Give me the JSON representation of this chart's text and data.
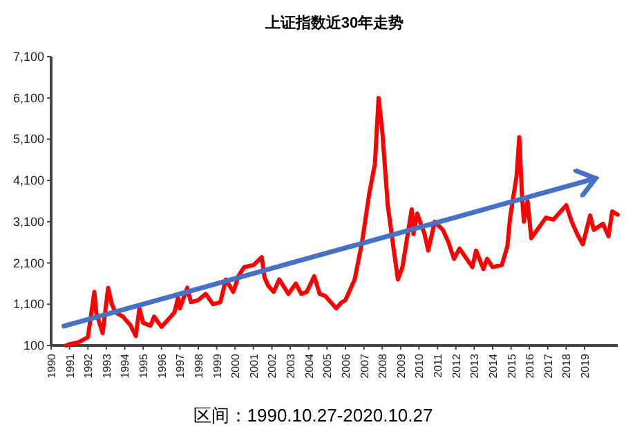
{
  "chart_data": {
    "type": "line",
    "title": "上证指数近30年走势",
    "annotations": [
      "区间：1990.10.27-2020.10.27"
    ],
    "series": [
      {
        "color": "#ff0000",
        "x": [
          1990.8,
          1991.0,
          1991.5,
          1992.0,
          1992.35,
          1992.45,
          1992.8,
          1993.1,
          1993.3,
          1993.5,
          1993.9,
          1994.3,
          1994.6,
          1994.8,
          1995.0,
          1995.4,
          1995.6,
          1996.0,
          1996.3,
          1996.7,
          1996.9,
          1997.0,
          1997.4,
          1997.6,
          1998.0,
          1998.4,
          1998.8,
          1999.2,
          1999.5,
          1999.9,
          2000.2,
          2000.5,
          2001.0,
          2001.45,
          2001.6,
          2001.8,
          2002.1,
          2002.4,
          2002.9,
          2003.3,
          2003.6,
          2003.9,
          2004.3,
          2004.6,
          2004.9,
          2005.3,
          2005.5,
          2005.8,
          2006.0,
          2006.5,
          2006.9,
          2007.3,
          2007.6,
          2007.8,
          2008.0,
          2008.3,
          2008.6,
          2008.85,
          2009.1,
          2009.6,
          2009.7,
          2009.9,
          2010.3,
          2010.5,
          2010.85,
          2011.3,
          2011.6,
          2011.9,
          2012.2,
          2012.9,
          2013.1,
          2013.5,
          2013.7,
          2014.0,
          2014.5,
          2014.8,
          2014.95,
          2015.3,
          2015.45,
          2015.6,
          2015.7,
          2015.9,
          2016.1,
          2016.5,
          2016.9,
          2017.3,
          2017.6,
          2018.0,
          2018.3,
          2018.6,
          2018.9,
          2019.3,
          2019.5,
          2020.0,
          2020.3,
          2020.5,
          2020.8
        ],
        "values": [
          100,
          130,
          180,
          300,
          1400,
          900,
          400,
          1500,
          1100,
          900,
          800,
          600,
          330,
          1000,
          650,
          580,
          800,
          550,
          700,
          900,
          1250,
          1000,
          1500,
          1150,
          1200,
          1350,
          1100,
          1150,
          1700,
          1400,
          1800,
          2000,
          2050,
          2240,
          1750,
          1550,
          1400,
          1700,
          1350,
          1600,
          1350,
          1400,
          1780,
          1350,
          1300,
          1100,
          1000,
          1150,
          1200,
          1700,
          2600,
          3800,
          4500,
          6100,
          5300,
          3500,
          2500,
          1700,
          2000,
          3400,
          2800,
          3300,
          2800,
          2400,
          3100,
          2900,
          2600,
          2200,
          2450,
          2000,
          2400,
          1950,
          2200,
          2000,
          2050,
          2500,
          3200,
          4200,
          5150,
          3700,
          3100,
          3600,
          2700,
          2950,
          3200,
          3150,
          3300,
          3500,
          3100,
          2800,
          2550,
          3250,
          2900,
          3050,
          2750,
          3350,
          3270
        ]
      },
      {
        "type": "line",
        "color": "#4472c4",
        "x": [
          1990.7,
          2019.6
        ],
        "values": [
          570,
          4150
        ]
      }
    ],
    "xlim": [
      1990,
      2020.8
    ],
    "xticks": [
      1990,
      1991,
      1992,
      1993,
      1994,
      1995,
      1996,
      1997,
      1998,
      1999,
      2000,
      2001,
      2002,
      2003,
      2004,
      2005,
      2006,
      2007,
      2008,
      2009,
      2010,
      2011,
      2012,
      2013,
      2014,
      2015,
      2016,
      2017,
      2018,
      2019
    ],
    "ylim": [
      100,
      7100
    ],
    "yticks": [
      100,
      {
        "value": 1100,
        "label": "1,100"
      },
      {
        "value": 2100,
        "label": "2,100"
      },
      {
        "value": 3100,
        "label": "3,100"
      },
      {
        "value": 4100,
        "label": "4,100"
      },
      {
        "value": 5100,
        "label": "5,100"
      },
      {
        "value": 6100,
        "label": "6,100"
      },
      {
        "value": 7100,
        "label": "7,100"
      }
    ],
    "grid": false,
    "line_style": "solid",
    "marker": "none"
  }
}
